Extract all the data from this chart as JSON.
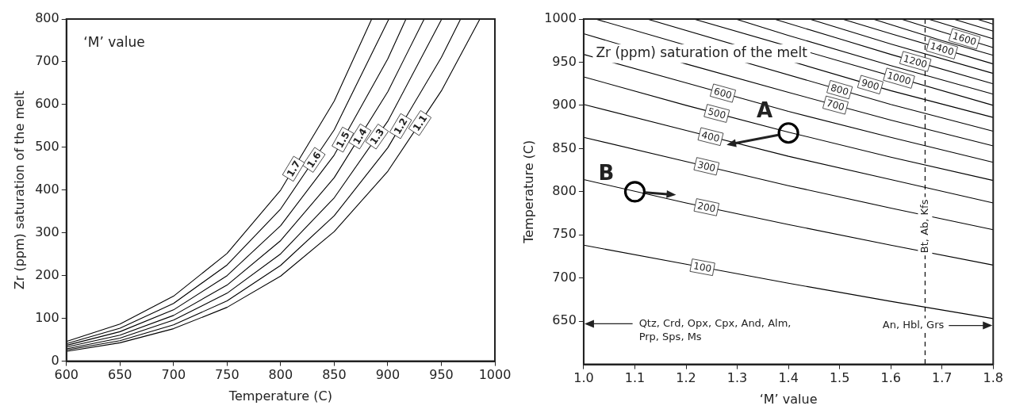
{
  "chart_data": [
    {
      "type": "line",
      "xlabel": "Temperature (C)",
      "ylabel": "Zr (ppm) saturation of the melt",
      "xlim": [
        600,
        1000
      ],
      "xticks": [
        600,
        650,
        700,
        750,
        800,
        850,
        900,
        950,
        1000
      ],
      "ylim": [
        0,
        800
      ],
      "yticks": [
        0,
        100,
        200,
        300,
        400,
        500,
        600,
        700,
        800
      ],
      "legend": false,
      "annotations": [
        "‘M’ value"
      ],
      "series": [
        {
          "name": "1.1",
          "color": "#000000",
          "x": [
            600,
            650,
            700,
            750,
            800,
            850,
            900,
            950,
            986
          ],
          "values": [
            23,
            43,
            76,
            126,
            199,
            303,
            444,
            632,
            800
          ]
        },
        {
          "name": "1.2",
          "color": "#000000",
          "x": [
            600,
            650,
            700,
            750,
            800,
            850,
            900,
            950,
            968
          ],
          "values": [
            26,
            48,
            85,
            141,
            224,
            340,
            499,
            710,
            800
          ]
        },
        {
          "name": "1.3",
          "color": "#000000",
          "x": [
            600,
            650,
            700,
            750,
            800,
            850,
            900,
            950
          ],
          "values": [
            29,
            54,
            96,
            159,
            251,
            382,
            561,
            798
          ]
        },
        {
          "name": "1.4",
          "color": "#000000",
          "x": [
            600,
            650,
            700,
            750,
            800,
            850,
            900,
            934
          ],
          "values": [
            33,
            61,
            107,
            178,
            282,
            429,
            630,
            800
          ]
        },
        {
          "name": "1.5",
          "color": "#000000",
          "x": [
            600,
            650,
            700,
            750,
            800,
            850,
            900,
            917
          ],
          "values": [
            37,
            69,
            120,
            200,
            317,
            482,
            707,
            800
          ]
        },
        {
          "name": "1.6",
          "color": "#000000",
          "x": [
            600,
            650,
            700,
            750,
            800,
            850,
            901
          ],
          "values": [
            41,
            77,
            135,
            225,
            356,
            541,
            800
          ]
        },
        {
          "name": "1.7",
          "color": "#000000",
          "x": [
            600,
            650,
            700,
            750,
            800,
            850,
            885
          ],
          "values": [
            46,
            87,
            152,
            252,
            400,
            608,
            800
          ]
        }
      ]
    },
    {
      "type": "line",
      "xlabel": "‘M’ value",
      "ylabel": "Temperature (C)",
      "xlim": [
        1.0,
        1.8
      ],
      "xticks": [
        {
          "value": 1.0,
          "label": "1.0"
        },
        1.1,
        1.2,
        1.3,
        1.4,
        1.5,
        1.6,
        1.7,
        1.8
      ],
      "ylim": [
        600,
        1000
      ],
      "yticks": [
        650,
        700,
        750,
        800,
        850,
        900,
        950,
        1000
      ],
      "legend": false,
      "annotations": [
        "Zr (ppm) saturation of the melt",
        {
          "text": "A",
          "x": 1.4,
          "y": 868
        },
        {
          "text": "B",
          "x": 1.1,
          "y": 800
        },
        "Qtz, Crd, Opx, Cpx, And, Alm, Prp, Sps, Ms",
        "An, Hbl, Grs"
      ],
      "ref_lines": [
        {
          "axis": "x",
          "value": 1.667,
          "label": "Bt, Ab, Kfs",
          "line_style": "dashed",
          "color": "#000000"
        }
      ],
      "series": [
        {
          "name": "100",
          "color": "#000000",
          "x": [
            1.0,
            1.2,
            1.4,
            1.6,
            1.8
          ],
          "values": [
            738,
            716,
            694,
            673,
            653
          ]
        },
        {
          "name": "200",
          "color": "#000000",
          "x": [
            1.0,
            1.2,
            1.4,
            1.6,
            1.8
          ],
          "values": [
            814,
            787,
            762,
            738,
            715
          ]
        },
        {
          "name": "300",
          "color": "#000000",
          "x": [
            1.0,
            1.2,
            1.4,
            1.6,
            1.8
          ],
          "values": [
            863,
            835,
            807,
            781,
            756
          ]
        },
        {
          "name": "400",
          "color": "#000000",
          "x": [
            1.0,
            1.2,
            1.4,
            1.6,
            1.8
          ],
          "values": [
            901,
            871,
            841,
            814,
            787
          ]
        },
        {
          "name": "500",
          "color": "#000000",
          "x": [
            1.0,
            1.2,
            1.4,
            1.6,
            1.8
          ],
          "values": [
            933,
            900,
            869,
            840,
            813
          ]
        },
        {
          "name": "600",
          "color": "#000000",
          "x": [
            1.0,
            1.2,
            1.4,
            1.6,
            1.8
          ],
          "values": [
            959,
            926,
            893,
            863,
            834
          ]
        },
        {
          "name": "700",
          "color": "#000000",
          "x": [
            1.0,
            1.2,
            1.4,
            1.6,
            1.8
          ],
          "values": [
            983,
            948,
            915,
            883,
            853
          ]
        },
        {
          "name": "800",
          "color": "#000000",
          "x": [
            1.023,
            1.6,
            1.8
          ],
          "values": [
            1000,
            901,
            870
          ]
        },
        {
          "name": "900",
          "color": "#000000",
          "x": [
            1.124,
            1.6,
            1.8
          ],
          "values": [
            1000,
            917,
            886
          ]
        },
        {
          "name": "1000",
          "color": "#000000",
          "x": [
            1.215,
            1.8
          ],
          "values": [
            1000,
            900
          ]
        },
        {
          "color": "#000000",
          "x": [
            1.297,
            1.4,
            1.6,
            1.8
          ],
          "values": [
            1000,
            981,
            946,
            913
          ]
        },
        {
          "name": "1200",
          "color": "#000000",
          "x": [
            1.372,
            1.5,
            1.6,
            1.8
          ],
          "values": [
            1000,
            977,
            959,
            925
          ]
        },
        {
          "color": "#000000",
          "x": [
            1.441,
            1.6,
            1.8
          ],
          "values": [
            1000,
            971,
            937
          ]
        },
        {
          "name": "1400",
          "color": "#000000",
          "x": [
            1.505,
            1.6,
            1.8
          ],
          "values": [
            1000,
            983,
            948
          ]
        },
        {
          "color": "#000000",
          "x": [
            1.565,
            1.7,
            1.8
          ],
          "values": [
            1000,
            975,
            958
          ]
        },
        {
          "name": "1600",
          "color": "#000000",
          "x": [
            1.62,
            1.7,
            1.8
          ],
          "values": [
            1000,
            985,
            967
          ]
        },
        {
          "color": "#000000",
          "x": [
            1.673,
            1.8
          ],
          "values": [
            1000,
            977
          ]
        },
        {
          "color": "#000000",
          "x": [
            1.722,
            1.8
          ],
          "values": [
            1000,
            986
          ]
        },
        {
          "color": "#000000",
          "x": [
            1.768,
            1.8
          ],
          "values": [
            1000,
            994
          ]
        },
        {
          "type": "scatter",
          "marker": "circle",
          "color": "#000000",
          "x": [
            1.4,
            1.1
          ],
          "values": [
            868,
            800
          ]
        }
      ]
    }
  ]
}
